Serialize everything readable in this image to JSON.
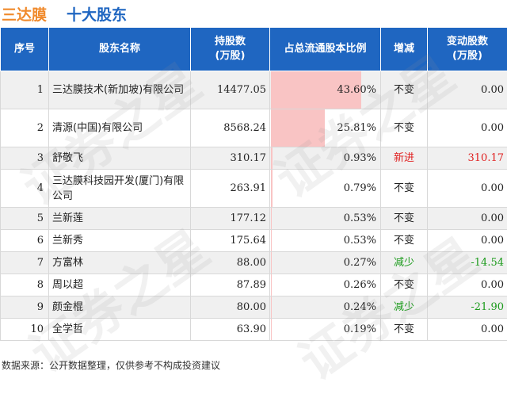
{
  "title": {
    "company": "三达膜",
    "section": "十大股东"
  },
  "headers": {
    "idx": "序号",
    "name": "股东名称",
    "shares": "持股数\n(万股)",
    "pct": "占总流通股本比例",
    "change_type": "增减",
    "change": "变动股数\n(万股)"
  },
  "rows": [
    {
      "idx": "1",
      "name": "三达膜技术(新加坡)有限公司",
      "shares": "14477.05",
      "pct": "43.60%",
      "pct_value": 43.6,
      "change_type": "不变",
      "change": "0.00",
      "change_class": "black"
    },
    {
      "idx": "2",
      "name": "清源(中国)有限公司",
      "shares": "8568.24",
      "pct": "25.81%",
      "pct_value": 25.81,
      "change_type": "不变",
      "change": "0.00",
      "change_class": "black"
    },
    {
      "idx": "3",
      "name": "舒敬飞",
      "shares": "310.17",
      "pct": "0.93%",
      "pct_value": 0.93,
      "change_type": "新进",
      "change": "310.17",
      "change_class": "red"
    },
    {
      "idx": "4",
      "name": "三达膜科技园开发(厦门)有限公司",
      "shares": "263.91",
      "pct": "0.79%",
      "pct_value": 0.79,
      "change_type": "不变",
      "change": "0.00",
      "change_class": "black"
    },
    {
      "idx": "5",
      "name": "兰新莲",
      "shares": "177.12",
      "pct": "0.53%",
      "pct_value": 0.53,
      "change_type": "不变",
      "change": "0.00",
      "change_class": "black"
    },
    {
      "idx": "6",
      "name": "兰新秀",
      "shares": "175.64",
      "pct": "0.53%",
      "pct_value": 0.53,
      "change_type": "不变",
      "change": "0.00",
      "change_class": "black"
    },
    {
      "idx": "7",
      "name": "方富林",
      "shares": "88.00",
      "pct": "0.27%",
      "pct_value": 0.27,
      "change_type": "减少",
      "change": "-14.54",
      "change_class": "green"
    },
    {
      "idx": "8",
      "name": "周以超",
      "shares": "87.89",
      "pct": "0.26%",
      "pct_value": 0.26,
      "change_type": "不变",
      "change": "0.00",
      "change_class": "black"
    },
    {
      "idx": "9",
      "name": "颜金棍",
      "shares": "80.00",
      "pct": "0.24%",
      "pct_value": 0.24,
      "change_type": "减少",
      "change": "-21.90",
      "change_class": "green"
    },
    {
      "idx": "10",
      "name": "全学哲",
      "shares": "63.90",
      "pct": "0.19%",
      "pct_value": 0.19,
      "change_type": "不变",
      "change": "0.00",
      "change_class": "black"
    }
  ],
  "footer": "数据来源：公开数据整理，仅供参考不构成投资建议",
  "watermark": "证券之星",
  "colors": {
    "header_bg": "#1f66c1",
    "bar": "#f9c4c4",
    "increase": "#e02020",
    "decrease": "#1a9a1a",
    "title_company": "#f08a2c"
  }
}
